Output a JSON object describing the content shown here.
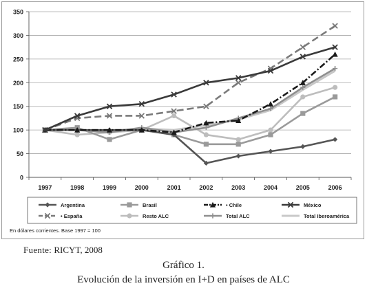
{
  "chart_data": {
    "type": "line",
    "categories": [
      "1997",
      "1998",
      "1999",
      "2000",
      "2001",
      "2002",
      "2003",
      "2004",
      "2005",
      "2006"
    ],
    "ylim": [
      0,
      350
    ],
    "yticks": [
      0,
      50,
      100,
      150,
      200,
      250,
      300,
      350
    ],
    "grid": true,
    "legend_position": "bottom",
    "series": [
      {
        "name": "Argentina",
        "color": "#555555",
        "marker": "diamond",
        "dash": "solid",
        "values": [
          100,
          100,
          100,
          100,
          90,
          30,
          45,
          55,
          65,
          80
        ]
      },
      {
        "name": "Brasil",
        "color": "#9a9a9a",
        "marker": "square",
        "dash": "solid",
        "values": [
          100,
          105,
          80,
          100,
          90,
          70,
          70,
          90,
          135,
          170
        ]
      },
      {
        "name": "Chile",
        "color": "#1a1a1a",
        "marker": "triangle",
        "dash": "dashdot",
        "values": [
          100,
          100,
          100,
          100,
          95,
          115,
          120,
          155,
          200,
          260
        ]
      },
      {
        "name": "México",
        "color": "#3a3a3a",
        "marker": "x",
        "dash": "solid",
        "values": [
          100,
          130,
          150,
          155,
          175,
          200,
          210,
          225,
          255,
          275
        ]
      },
      {
        "name": "España",
        "color": "#7a7a7a",
        "marker": "x",
        "dash": "longdash",
        "values": [
          100,
          125,
          130,
          130,
          140,
          150,
          200,
          230,
          275,
          320
        ]
      },
      {
        "name": "Resto ALC",
        "color": "#bdbdbd",
        "marker": "circle",
        "dash": "solid",
        "values": [
          100,
          90,
          95,
          100,
          130,
          90,
          80,
          100,
          170,
          190
        ]
      },
      {
        "name": "Total ALC",
        "color": "#8f8f8f",
        "marker": "plus",
        "dash": "solid",
        "values": [
          100,
          100,
          95,
          105,
          95,
          105,
          125,
          145,
          190,
          230
        ]
      },
      {
        "name": "Total Iberoamérica",
        "color": "#c8c8c8",
        "marker": "none",
        "dash": "solid",
        "values": [
          100,
          100,
          98,
          103,
          100,
          110,
          122,
          142,
          185,
          225
        ]
      }
    ],
    "legend_labels": [
      "Argentina",
      "Brasil",
      "• Chile",
      "México",
      "• España",
      "Resto ALC",
      "Total ALC",
      "Total Iberoamérica"
    ]
  },
  "note": "En dólares corrientes. Base 1997 = 100",
  "source": {
    "label": "Fuente:",
    "text": "RICYT, 2008"
  },
  "caption": {
    "label": "Gráfico 1.",
    "title": "Evolución de la inversión en I+D en países de ALC"
  }
}
